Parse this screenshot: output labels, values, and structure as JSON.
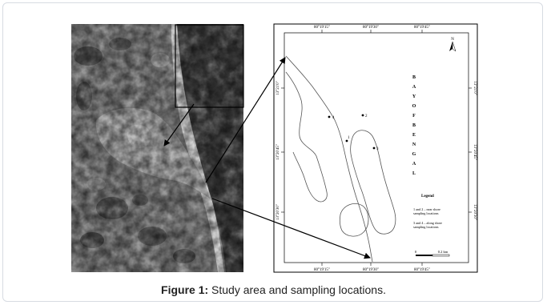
{
  "figure": {
    "caption_label": "Figure 1:",
    "caption_text": "Study area and sampling locations."
  },
  "map": {
    "top_ticks": [
      "80°19'15\"",
      "80°19'30\"",
      "80°19'45\""
    ],
    "bottom_ticks": [
      "80°19'15\"",
      "80°19'30\"",
      "80°19'45\""
    ],
    "left_ticks": [
      "13°21'0\"",
      "13°20'45\"",
      "13°20'30\""
    ],
    "right_ticks": [
      "13°21'0\"",
      "13°20'45\"",
      "13°20'30\""
    ],
    "north_label": "N",
    "sea_label_letters": [
      "B",
      "A",
      "Y",
      "O",
      "F",
      "B",
      "E",
      "N",
      "G",
      "A",
      "L"
    ],
    "points": [
      "4",
      "2",
      "1",
      "3"
    ],
    "legend_title": "Legend",
    "legend_line1": "1 and 2 – near shore",
    "legend_line2": "sampling locations",
    "legend_line3": "3 and 4 – along shore",
    "legend_line4": "sampling locations",
    "scale_0": "0",
    "scale_1": "0.2 km"
  },
  "colors": {
    "arrow": "#000000",
    "frame_border": "#d7dbe2"
  }
}
